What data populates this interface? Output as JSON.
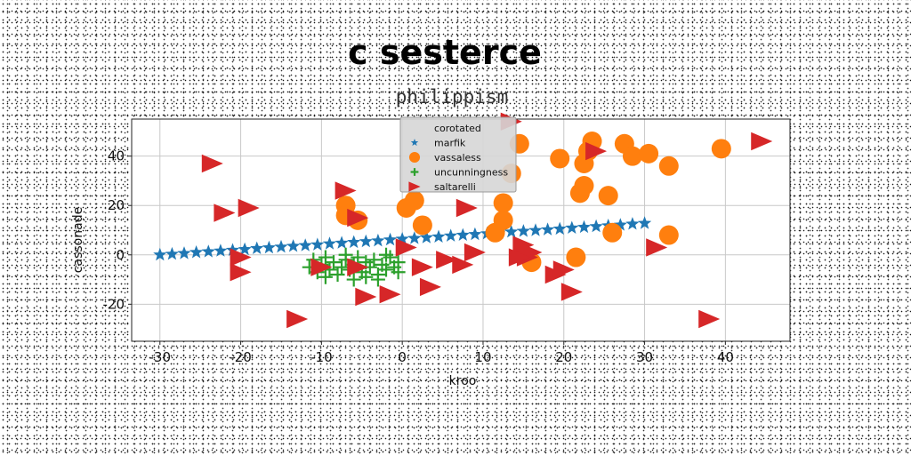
{
  "chart_data": {
    "type": "scatter",
    "suptitle": "c sesterce",
    "title": "philippism",
    "xlabel": "kroo",
    "ylabel": "cassonade",
    "xlim": [
      -33.5,
      48
    ],
    "ylim": [
      -35,
      55
    ],
    "xticks": [
      -30,
      -20,
      -10,
      0,
      10,
      20,
      30,
      40
    ],
    "yticks": [
      -20,
      0,
      20,
      40
    ],
    "grid": true,
    "legend_position": "top-center",
    "series": [
      {
        "name": "corotated",
        "marker": "none",
        "color": "#1f77b4",
        "x": [],
        "y": []
      },
      {
        "name": "marfik",
        "marker": "star",
        "color": "#1f77b4",
        "x": [
          -30,
          -28.5,
          -27,
          -25.5,
          -24,
          -22.5,
          -21,
          -19.5,
          -18,
          -16.5,
          -15,
          -13.5,
          -12,
          -10.5,
          -9,
          -7.5,
          -6,
          -4.5,
          -3,
          -1.5,
          0,
          1.5,
          3,
          4.5,
          6,
          7.5,
          9,
          10.5,
          12,
          13.5,
          15,
          16.5,
          18,
          19.5,
          21,
          22.5,
          24,
          25.5,
          27,
          28.5,
          30
        ],
        "y": [
          0,
          0.3,
          0.6,
          1.0,
          1.3,
          1.6,
          1.9,
          2.2,
          2.6,
          2.9,
          3.2,
          3.5,
          3.8,
          4.1,
          4.5,
          4.8,
          5.1,
          5.4,
          5.7,
          6.1,
          6.4,
          6.7,
          7.0,
          7.3,
          7.7,
          8.0,
          8.3,
          8.6,
          8.9,
          9.3,
          9.6,
          9.9,
          10.2,
          10.5,
          10.9,
          11.2,
          11.5,
          11.8,
          12.1,
          12.5,
          12.8
        ]
      },
      {
        "name": "vassaless",
        "marker": "circle",
        "color": "#ff7f0e",
        "x": [
          -7,
          -7,
          -5.5,
          0.5,
          1.5,
          2.5,
          12.5,
          12.5,
          11.5,
          13.5,
          14.5,
          19.5,
          22,
          22.5,
          22.5,
          23,
          23.5,
          25.5,
          26,
          27.5,
          28.5,
          30.5,
          33,
          39.5,
          21.5,
          16,
          33
        ],
        "y": [
          20,
          16,
          14,
          19,
          22,
          12,
          21,
          14,
          9,
          33,
          45,
          39,
          25,
          37,
          28,
          42,
          46,
          24,
          9,
          45,
          40,
          41,
          36,
          43,
          -1,
          -3,
          8
        ]
      },
      {
        "name": "uncunningness",
        "marker": "plus",
        "color": "#2ca02c",
        "x": [
          -11.5,
          -11,
          -10.5,
          -10,
          -9.5,
          -9,
          -8.5,
          -8,
          -7.5,
          -7,
          -6.5,
          -6,
          -5.5,
          -5,
          -4.5,
          -4,
          -3.5,
          -3,
          -2.5,
          -2,
          -1.5,
          -1,
          -0.5,
          -9.5,
          -7,
          -4.5,
          -2,
          -0.5,
          -6,
          -3
        ],
        "y": [
          -5,
          -2,
          -7,
          -4,
          -1,
          -6,
          -3,
          -8,
          -5,
          -2,
          -6,
          -4,
          -1,
          -7,
          -3,
          -5,
          -2,
          -8,
          -4,
          -6,
          -1,
          -5,
          -3,
          -9,
          0,
          -9,
          0,
          -7,
          -10,
          -10
        ]
      },
      {
        "name": "saltarelli",
        "marker": "triangle-right",
        "color": "#d62728",
        "x": [
          -23.5,
          -22,
          -19,
          -20,
          -20,
          -13,
          -7,
          -5.5,
          -10,
          -5.5,
          -4.5,
          -1.5,
          0.5,
          2.5,
          3.5,
          5.5,
          7.5,
          8,
          9,
          13.5,
          15,
          15.5,
          19,
          20,
          21,
          24,
          31.5,
          38,
          44.5,
          16,
          14.5
        ],
        "y": [
          37,
          17,
          19,
          -1,
          -7,
          -26,
          26,
          15,
          -5,
          -5,
          -17,
          -16,
          3,
          -5,
          -13,
          -2,
          -4,
          19,
          1,
          54,
          4,
          -1,
          -8,
          -6,
          -15,
          42,
          3,
          -26,
          46,
          1,
          -1
        ]
      }
    ]
  }
}
